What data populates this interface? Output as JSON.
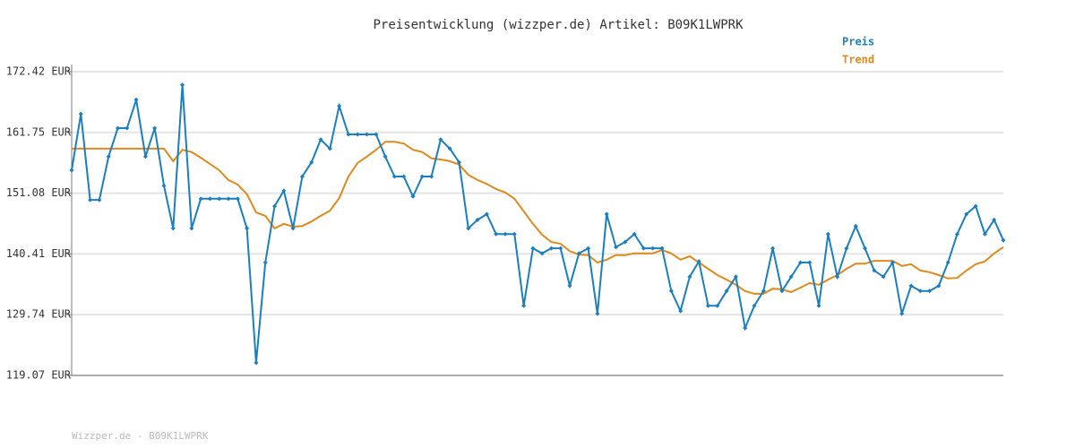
{
  "chart_data": {
    "type": "line",
    "title": "Preisentwicklung (wizzper.de) Artikel: B09K1LWPRK",
    "footer": "Wizzper.de - B09K1LWPRK",
    "ylim": [
      119.07,
      172.42
    ],
    "yticks": [
      {
        "value": 119.07,
        "label": "119.07 EUR"
      },
      {
        "value": 129.74,
        "label": "129.74 EUR"
      },
      {
        "value": 140.41,
        "label": "140.41 EUR"
      },
      {
        "value": 151.08,
        "label": "151.08 EUR"
      },
      {
        "value": 161.75,
        "label": "161.75 EUR"
      },
      {
        "value": 172.42,
        "label": "172.42 EUR"
      }
    ],
    "grid": true,
    "legend": "top-right",
    "series": [
      {
        "name": "Preis",
        "color": "#1a7fc1",
        "markers": true,
        "values": [
          155.1,
          165.0,
          149.9,
          149.9,
          157.5,
          162.5,
          162.5,
          167.5,
          157.5,
          162.5,
          152.4,
          144.9,
          170.1,
          144.9,
          150.1,
          150.1,
          150.1,
          150.1,
          150.1,
          144.9,
          121.3,
          138.9,
          148.8,
          151.5,
          144.9,
          154.0,
          156.5,
          160.5,
          158.9,
          166.4,
          161.4,
          161.4,
          161.4,
          161.4,
          157.5,
          154.0,
          154.0,
          150.5,
          154.0,
          154.0,
          160.5,
          158.9,
          156.5,
          144.9,
          146.4,
          147.4,
          143.9,
          143.9,
          143.9,
          131.3,
          141.4,
          140.5,
          141.4,
          141.4,
          134.8,
          140.5,
          141.4,
          129.9,
          147.4,
          141.6,
          142.5,
          143.9,
          141.4,
          141.4,
          141.4,
          133.9,
          130.4,
          136.4,
          139.1,
          131.3,
          131.3,
          133.9,
          136.4,
          127.4,
          131.3,
          133.9,
          141.4,
          133.9,
          136.4,
          138.9,
          138.9,
          131.3,
          143.9,
          136.4,
          141.4,
          145.3,
          141.4,
          137.5,
          136.4,
          138.9,
          129.9,
          134.8,
          133.9,
          133.9,
          134.8,
          138.9,
          143.9,
          147.4,
          148.8,
          143.9,
          146.4,
          142.8
        ]
      },
      {
        "name": "Trend",
        "color": "#e0891c",
        "markers": false,
        "values": [
          158.9,
          158.9,
          158.9,
          158.9,
          158.9,
          158.9,
          158.9,
          158.9,
          158.9,
          158.9,
          158.9,
          156.7,
          158.7,
          158.3,
          157.3,
          156.2,
          155.1,
          153.4,
          152.6,
          150.9,
          147.7,
          147.1,
          144.9,
          145.7,
          145.2,
          145.3,
          146.1,
          147.1,
          148.0,
          150.2,
          154.0,
          156.4,
          157.5,
          158.7,
          160.1,
          160.1,
          159.8,
          158.7,
          158.3,
          157.2,
          157.0,
          156.7,
          156.1,
          154.3,
          153.4,
          152.7,
          151.8,
          151.2,
          150.1,
          147.9,
          145.7,
          143.8,
          142.5,
          142.2,
          140.9,
          140.3,
          140.2,
          138.9,
          139.4,
          140.2,
          140.2,
          140.5,
          140.5,
          140.5,
          141.1,
          140.5,
          139.4,
          140.0,
          138.9,
          137.8,
          136.7,
          135.9,
          135.0,
          133.9,
          133.4,
          133.4,
          134.3,
          134.2,
          133.7,
          134.5,
          135.3,
          135.0,
          135.9,
          136.7,
          137.8,
          138.7,
          138.7,
          139.2,
          139.2,
          139.2,
          138.3,
          138.6,
          137.5,
          137.2,
          136.7,
          136.1,
          136.2,
          137.5,
          138.6,
          139.1,
          140.5,
          141.6
        ]
      }
    ]
  }
}
